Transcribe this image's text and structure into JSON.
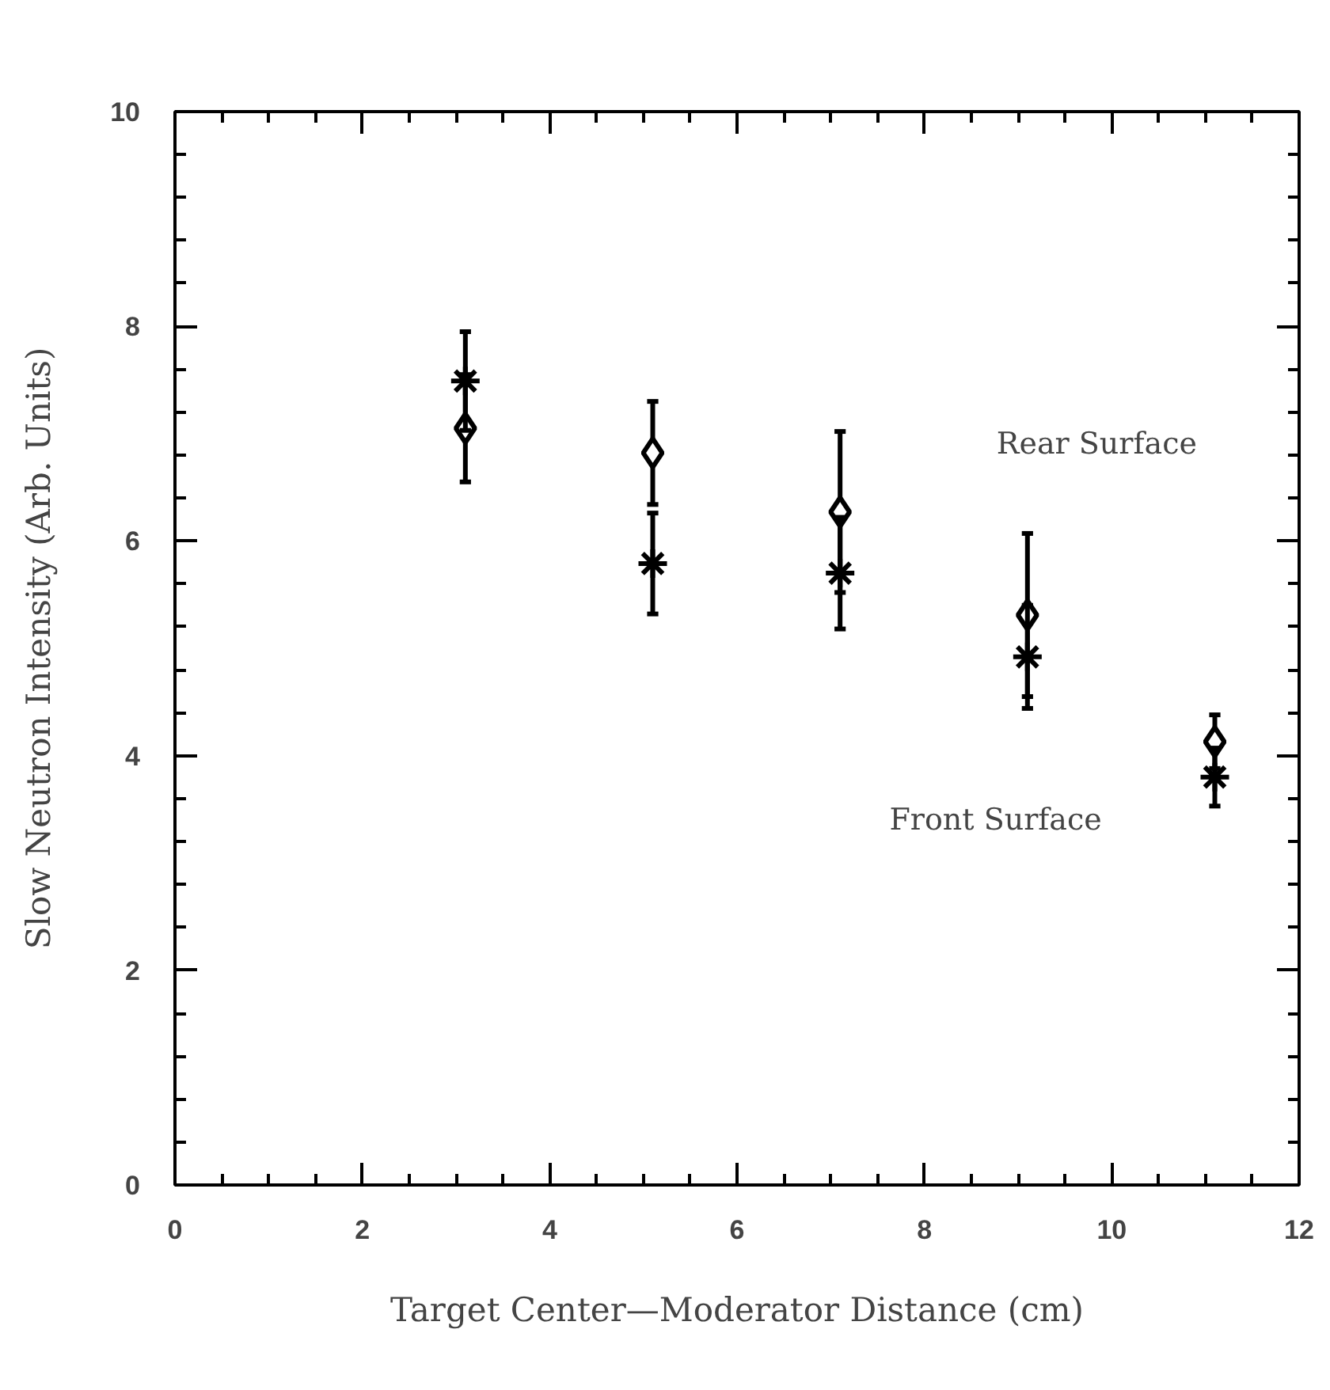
{
  "chart_data": {
    "type": "scatter",
    "xlabel": "Target Center—Moderator Distance (cm)",
    "ylabel": "Slow Neutron Intensity (Arb. Units)",
    "x": [
      3.1,
      5.1,
      7.1,
      9.1,
      11.1
    ],
    "series": [
      {
        "color": "#000000",
        "marker": "diamond",
        "values": [
          7.05,
          6.82,
          6.27,
          5.31,
          4.13
        ],
        "errors": [
          0.5,
          0.48,
          0.75,
          0.76,
          0.25
        ]
      },
      {
        "color": "#000000",
        "marker": "cross",
        "values": [
          7.49,
          5.79,
          5.7,
          4.92,
          3.8
        ],
        "errors": [
          0.46,
          0.47,
          0.52,
          0.48,
          0.27
        ]
      }
    ],
    "annotations": [
      "Rear Surface",
      "Front Surface"
    ],
    "xlim": [
      0,
      12
    ],
    "xticks": [
      0,
      2,
      4,
      6,
      8,
      10,
      12
    ],
    "ylim": [
      0,
      10
    ],
    "yticks": [
      0,
      2,
      4,
      6,
      8,
      10
    ],
    "grid": false
  }
}
